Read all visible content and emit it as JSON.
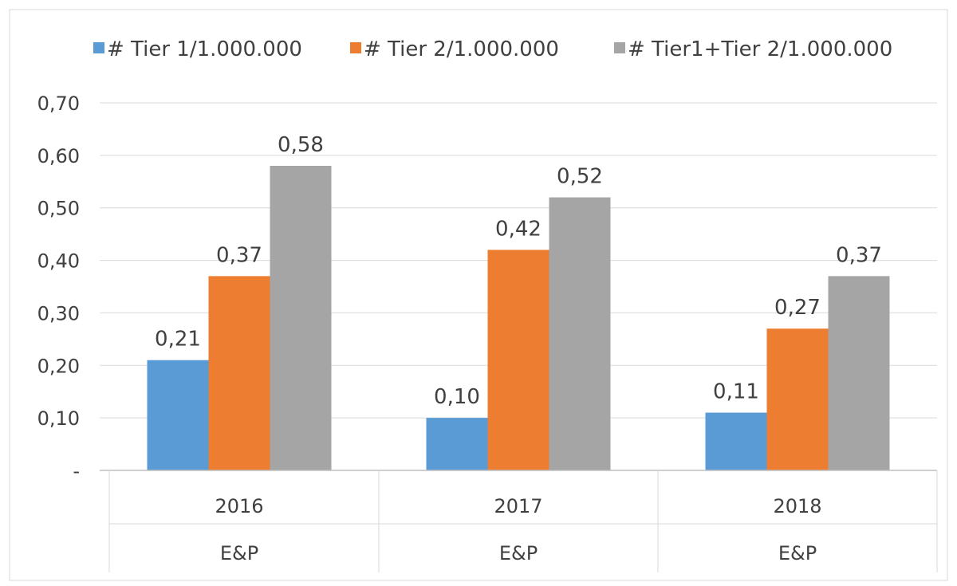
{
  "chart_data": {
    "type": "bar",
    "categories": [
      "2016",
      "2017",
      "2018"
    ],
    "group_labels": [
      "E&P",
      "E&P",
      "E&P"
    ],
    "series": [
      {
        "name": "# Tier 1/1.000.000",
        "color": "#5B9BD5",
        "values": [
          0.21,
          0.1,
          0.11
        ],
        "labels": [
          "0,21",
          "0,10",
          "0,11"
        ]
      },
      {
        "name": "# Tier 2/1.000.000",
        "color": "#ED7D31",
        "values": [
          0.37,
          0.42,
          0.27
        ],
        "labels": [
          "0,37",
          "0,42",
          "0,27"
        ]
      },
      {
        "name": "# Tier1+Tier 2/1.000.000",
        "color": "#A5A5A5",
        "values": [
          0.58,
          0.52,
          0.37
        ],
        "labels": [
          "0,58",
          "0,52",
          "0,37"
        ]
      }
    ],
    "yticks": [
      0,
      0.1,
      0.2,
      0.3,
      0.4,
      0.5,
      0.6,
      0.7
    ],
    "ytick_labels": [
      "-",
      "0,10",
      "0,20",
      "0,30",
      "0,40",
      "0,50",
      "0,60",
      "0,70"
    ],
    "ylim": [
      0,
      0.7
    ],
    "grid": true,
    "legend": "top"
  }
}
